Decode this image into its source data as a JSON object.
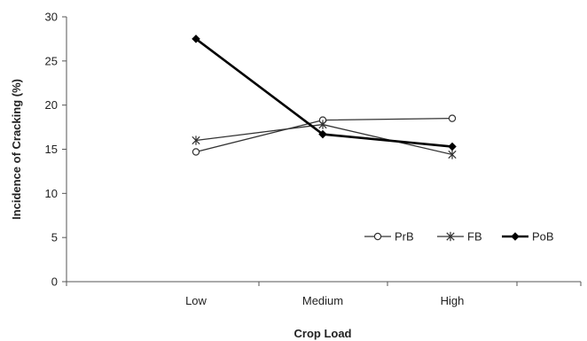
{
  "chart_data": {
    "type": "line",
    "categories": [
      "Low",
      "Medium",
      "High"
    ],
    "series": [
      {
        "name": "PrB",
        "values": [
          14.7,
          18.3,
          18.5
        ],
        "marker": "open-circle",
        "line_weight": "thin",
        "color": "#333333"
      },
      {
        "name": "FB",
        "values": [
          16.0,
          17.8,
          14.4
        ],
        "marker": "asterisk",
        "line_weight": "thin",
        "color": "#333333"
      },
      {
        "name": "PoB",
        "values": [
          27.5,
          16.7,
          15.3
        ],
        "marker": "filled-diamond",
        "line_weight": "thick",
        "color": "#000000"
      }
    ],
    "title": "",
    "xlabel": "Crop Load",
    "ylabel": "Incidence of Cracking (%)",
    "ylim": [
      0,
      30
    ],
    "yticks": [
      0,
      5,
      10,
      15,
      20,
      25,
      30
    ],
    "grid": false,
    "legend": "bottom-right"
  }
}
